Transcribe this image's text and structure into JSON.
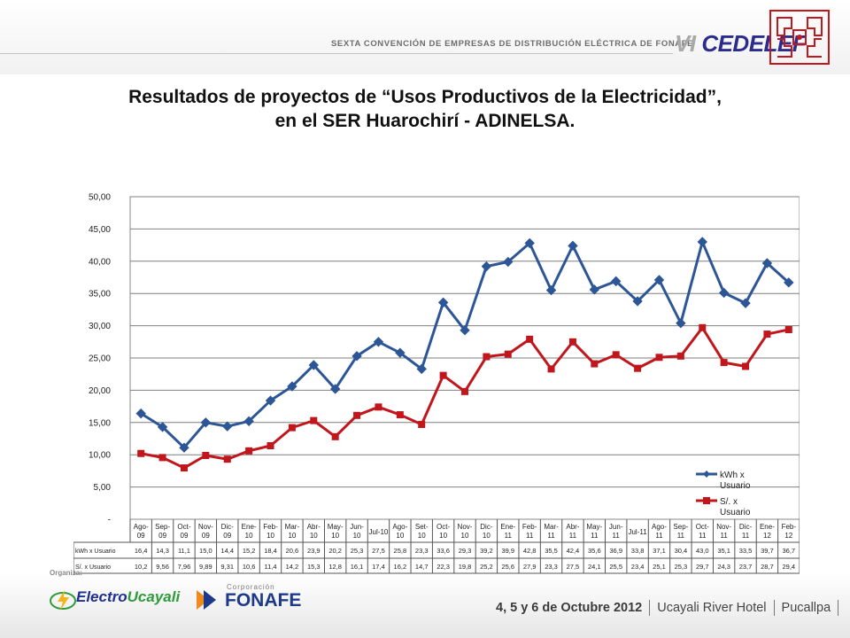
{
  "header": {
    "event_name": "SEXTA CONVENCIÓN DE EMPRESAS DE DISTRIBUCIÓN ELÉCTRICA DE FONAFE",
    "brand_roman": "VI",
    "brand_name": "CEDELEF"
  },
  "title": {
    "line1": "Resultados de proyectos de “Usos Productivos de la Electricidad”,",
    "line2": "en el SER Huarochirí - ADINELSA."
  },
  "chart_data": {
    "type": "line",
    "categories": [
      "Ago-09",
      "Sep-09",
      "Oct-09",
      "Nov-09",
      "Dic-09",
      "Ene-10",
      "Feb-10",
      "Mar-10",
      "Abr-10",
      "May-10",
      "Jun-10",
      "Jul-10",
      "Ago-10",
      "Set-10",
      "Oct-10",
      "Nov-10",
      "Dic-10",
      "Ene-11",
      "Feb-11",
      "Mar-11",
      "Abr-11",
      "May-11",
      "Jun-11",
      "Jul-11",
      "Ago-11",
      "Sep-11",
      "Oct-11",
      "Nov-11",
      "Dic-11",
      "Ene-12",
      "Feb-12"
    ],
    "series": [
      {
        "name": "kWh x Usuario",
        "table_label": "kWh x Usuario",
        "color": "#2d5697",
        "marker": "diamond",
        "values": [
          16.4,
          14.3,
          11.1,
          15.0,
          14.4,
          15.2,
          18.4,
          20.6,
          23.9,
          20.2,
          25.3,
          27.5,
          25.8,
          23.3,
          33.6,
          29.3,
          39.2,
          39.9,
          42.8,
          35.5,
          42.4,
          35.6,
          36.9,
          33.8,
          37.1,
          30.4,
          43.0,
          35.1,
          33.5,
          39.7,
          36.7
        ],
        "labels": [
          "16,4",
          "14,3",
          "11,1",
          "15,0",
          "14,4",
          "15,2",
          "18,4",
          "20,6",
          "23,9",
          "20,2",
          "25,3",
          "27,5",
          "25,8",
          "23,3",
          "33,6",
          "29,3",
          "39,2",
          "39,9",
          "42,8",
          "35,5",
          "42,4",
          "35,6",
          "36,9",
          "33,8",
          "37,1",
          "30,4",
          "43,0",
          "35,1",
          "33,5",
          "39,7",
          "36,7"
        ]
      },
      {
        "name": "S/. x Usuario",
        "table_label": "S/. x Usuario",
        "color": "#c0161c",
        "marker": "square",
        "values": [
          10.2,
          9.56,
          7.96,
          9.89,
          9.31,
          10.6,
          11.4,
          14.2,
          15.3,
          12.8,
          16.1,
          17.4,
          16.2,
          14.7,
          22.3,
          19.8,
          25.2,
          25.6,
          27.9,
          23.3,
          27.5,
          24.1,
          25.5,
          23.4,
          25.1,
          25.3,
          29.7,
          24.3,
          23.7,
          28.7,
          29.4
        ],
        "labels": [
          "10,2",
          "9,56",
          "7,96",
          "9,89",
          "9,31",
          "10,6",
          "11,4",
          "14,2",
          "15,3",
          "12,8",
          "16,1",
          "17,4",
          "16,2",
          "14,7",
          "22,3",
          "19,8",
          "25,2",
          "25,6",
          "27,9",
          "23,3",
          "27,5",
          "24,1",
          "25,5",
          "23,4",
          "25,1",
          "25,3",
          "29,7",
          "24,3",
          "23,7",
          "28,7",
          "29,4"
        ]
      }
    ],
    "ylim": [
      0,
      50
    ],
    "y_ticks": [
      0,
      5,
      10,
      15,
      20,
      25,
      30,
      35,
      40,
      45,
      50
    ],
    "y_tick_labels": [
      "-",
      "5,00",
      "10,00",
      "15,00",
      "20,00",
      "25,00",
      "30,00",
      "35,00",
      "40,00",
      "45,00",
      "50,00"
    ],
    "grid": true,
    "legend_position": "right",
    "data_table": true
  },
  "footer": {
    "org_label": "Organiza:",
    "logo1_a": "Electro",
    "logo1_b": "Ucayali",
    "logo2_corp": "Corporación",
    "logo2_name": "FONAFE",
    "date": "4, 5 y 6 de Octubre 2012",
    "venue": "Ucayali River Hotel",
    "city": "Pucallpa"
  }
}
